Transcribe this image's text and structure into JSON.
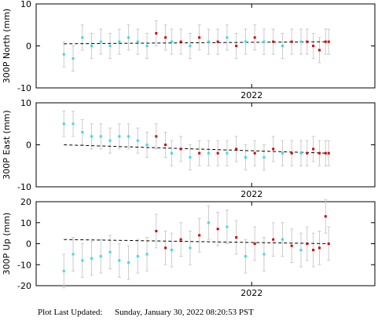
{
  "chart_data": [
    {
      "type": "scatter",
      "ylabel": "300P North (mm)",
      "xlim": [
        2021.3,
        2022.4
      ],
      "xticks": [
        2022
      ],
      "ylim": [
        -10,
        10
      ],
      "yticks": [
        -10,
        0,
        10
      ],
      "series": [
        {
          "color": "#33dde6",
          "x": [
            2021.39,
            2021.42,
            2021.45,
            2021.48,
            2021.51,
            2021.54,
            2021.57,
            2021.6,
            2021.63,
            2021.66,
            2021.74,
            2021.8,
            2021.86,
            2021.92,
            2021.98,
            2022.04,
            2022.1,
            2022.16
          ],
          "values": [
            -2,
            -3,
            2,
            0,
            1,
            0,
            1,
            2,
            1,
            0,
            1,
            0,
            1,
            2,
            1,
            1,
            0,
            1
          ],
          "errors": [
            3,
            3,
            3,
            3,
            3,
            3,
            3,
            3,
            3,
            3,
            3,
            3,
            3,
            3,
            3,
            3,
            3,
            3
          ]
        },
        {
          "color": "#cc0000",
          "x": [
            2021.69,
            2021.72,
            2021.77,
            2021.83,
            2021.89,
            2021.95,
            2022.01,
            2022.07,
            2022.13,
            2022.18,
            2022.2,
            2022.22,
            2022.24,
            2022.25
          ],
          "values": [
            3,
            2,
            1,
            2,
            1,
            0,
            2,
            1,
            1,
            1,
            0,
            -1,
            1,
            1
          ],
          "errors": [
            3,
            3,
            3,
            3,
            3,
            3,
            3,
            3,
            3,
            3,
            3,
            3,
            3,
            3
          ]
        }
      ],
      "model": {
        "color": "#000000",
        "x": [
          2021.39,
          2022.25
        ],
        "values": [
          0.5,
          1
        ]
      }
    },
    {
      "type": "scatter",
      "ylabel": "300P East (mm)",
      "xlim": [
        2021.3,
        2022.4
      ],
      "xticks": [
        2022
      ],
      "ylim": [
        -10,
        10
      ],
      "yticks": [
        -10,
        0,
        10
      ],
      "series": [
        {
          "color": "#33dde6",
          "x": [
            2021.39,
            2021.42,
            2021.45,
            2021.48,
            2021.51,
            2021.54,
            2021.57,
            2021.6,
            2021.63,
            2021.66,
            2021.74,
            2021.8,
            2021.86,
            2021.92,
            2021.98,
            2022.04,
            2022.1,
            2022.16
          ],
          "values": [
            5,
            5,
            3,
            2,
            2,
            1,
            2,
            2,
            1,
            0,
            -2,
            -3,
            -2,
            -2,
            -3,
            -3,
            -2,
            -2
          ],
          "errors": [
            3,
            3,
            3,
            3,
            3,
            3,
            3,
            3,
            3,
            3,
            3,
            3,
            3,
            3,
            3,
            3,
            3,
            3
          ]
        },
        {
          "color": "#cc0000",
          "x": [
            2021.69,
            2021.72,
            2021.77,
            2021.83,
            2021.89,
            2021.95,
            2022.01,
            2022.07,
            2022.13,
            2022.18,
            2022.2,
            2022.22,
            2022.24,
            2022.25
          ],
          "values": [
            2,
            0,
            -1,
            -2,
            -2,
            -1,
            -2,
            -1,
            -2,
            -2,
            -1,
            -2,
            -2,
            -2
          ],
          "errors": [
            3,
            3,
            3,
            3,
            3,
            3,
            3,
            3,
            3,
            3,
            3,
            3,
            3,
            3
          ]
        }
      ],
      "model": {
        "color": "#000000",
        "x": [
          2021.39,
          2022.25
        ],
        "values": [
          0,
          -2
        ]
      }
    },
    {
      "type": "scatter",
      "ylabel": "300P Up (mm)",
      "xlim": [
        2021.3,
        2022.4
      ],
      "xticks": [
        2022
      ],
      "ylim": [
        -20,
        20
      ],
      "yticks": [
        -20,
        -10,
        0,
        10,
        20
      ],
      "series": [
        {
          "color": "#33dde6",
          "x": [
            2021.39,
            2021.42,
            2021.45,
            2021.48,
            2021.51,
            2021.54,
            2021.57,
            2021.6,
            2021.63,
            2021.66,
            2021.74,
            2021.8,
            2021.86,
            2021.92,
            2021.98,
            2022.04,
            2022.1,
            2022.16
          ],
          "values": [
            -13,
            -5,
            -8,
            -7,
            -6,
            -4,
            -8,
            -9,
            -6,
            -5,
            -3,
            -2,
            10,
            8,
            -6,
            -5,
            2,
            -3
          ],
          "errors": [
            8,
            8,
            8,
            8,
            8,
            8,
            8,
            8,
            8,
            8,
            8,
            8,
            8,
            8,
            8,
            8,
            8,
            8
          ]
        },
        {
          "color": "#cc0000",
          "x": [
            2021.69,
            2021.72,
            2021.77,
            2021.83,
            2021.89,
            2021.95,
            2022.01,
            2022.07,
            2022.13,
            2022.18,
            2022.2,
            2022.22,
            2022.24,
            2022.25
          ],
          "values": [
            6,
            -2,
            2,
            4,
            7,
            3,
            0,
            2,
            -1,
            0,
            -3,
            -2,
            13,
            0
          ],
          "errors": [
            8,
            8,
            8,
            8,
            8,
            8,
            8,
            8,
            8,
            8,
            8,
            8,
            8,
            8
          ]
        }
      ],
      "model": {
        "color": "#000000",
        "x": [
          2021.39,
          2022.25
        ],
        "values": [
          2,
          0
        ]
      }
    }
  ],
  "footer": {
    "label": "Plot Last Updated:",
    "timestamp": "Sunday, January 30, 2022 08:20:53 PST"
  }
}
